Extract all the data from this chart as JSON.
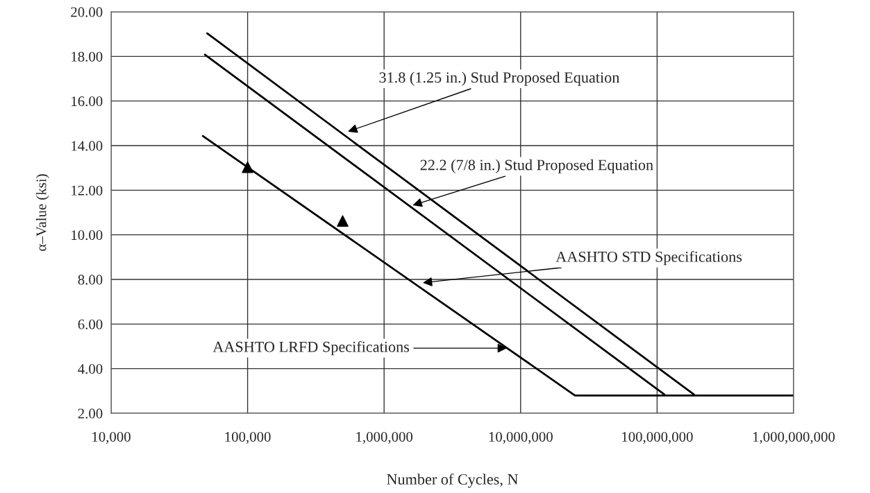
{
  "chart_data": {
    "type": "line",
    "xlabel": "Number of Cycles, N",
    "ylabel": "α–Value (ksi)",
    "log": "x",
    "grid": true,
    "legend": false,
    "xlim": [
      10000,
      1000000000
    ],
    "xticks": [
      {
        "value": 10000,
        "label": "10,000"
      },
      {
        "value": 100000,
        "label": "100,000"
      },
      {
        "value": 1000000,
        "label": "1,000,000"
      },
      {
        "value": 10000000,
        "label": "10,000,000"
      },
      {
        "value": 100000000,
        "label": "100,000,000"
      },
      {
        "value": 1000000000,
        "label": "1,000,000,000"
      }
    ],
    "ylim": [
      2,
      20
    ],
    "yticks": [
      {
        "value": 2,
        "label": "2.00"
      },
      {
        "value": 4,
        "label": "4.00"
      },
      {
        "value": 6,
        "label": "6.00"
      },
      {
        "value": 8,
        "label": "8.00"
      },
      {
        "value": 10,
        "label": "10.00"
      },
      {
        "value": 12,
        "label": "12.00"
      },
      {
        "value": 14,
        "label": "14.00"
      },
      {
        "value": 16,
        "label": "16.00"
      },
      {
        "value": 18,
        "label": "18.00"
      },
      {
        "value": 20,
        "label": "20.00"
      }
    ],
    "series": [
      {
        "color": "#000000",
        "x": [
          50600,
          186000000
        ],
        "values": [
          19.03,
          2.84
        ]
      },
      {
        "color": "#000000",
        "x": [
          48700,
          113000000
        ],
        "values": [
          18.08,
          2.84
        ]
      },
      {
        "color": "#000000",
        "x": [
          47000,
          25000000,
          1000000000
        ],
        "values": [
          14.43,
          2.8,
          2.8
        ]
      },
      {
        "type": "scatter",
        "color": "#000000",
        "marker": "triangle",
        "x": [
          100000,
          497000
        ],
        "values": [
          13.03,
          10.62
        ]
      }
    ],
    "annotations": [
      {
        "text": "31.8 (1.25 in.) Stud Proposed Equation",
        "x": 527000,
        "y": 14.6
      },
      {
        "text": "22.2 (7/8 in.) Stud Proposed Equation",
        "x": 1570000,
        "y": 11.3
      },
      {
        "text": "AASHTO STD Specifications",
        "x": 1860000,
        "y": 7.84
      },
      {
        "text": "AASHTO LRFD Specifications",
        "x": 8200000,
        "y": 4.92
      }
    ]
  }
}
